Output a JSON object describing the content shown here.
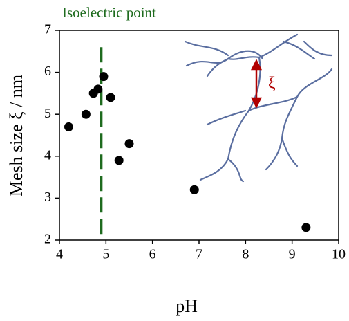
{
  "chart_data": {
    "type": "scatter",
    "x_label": "pH",
    "y_label": "Mesh size ξ / nm",
    "x": [
      4.2,
      4.57,
      4.73,
      4.83,
      4.95,
      5.1,
      5.28,
      5.5,
      6.9,
      9.3
    ],
    "values": [
      4.7,
      5.0,
      5.5,
      5.6,
      5.9,
      5.4,
      3.9,
      4.3,
      3.2,
      2.3
    ],
    "color": "#000000",
    "xlim": [
      4,
      10
    ],
    "xticks": [
      4,
      5,
      6,
      7,
      8,
      9,
      10
    ],
    "ylim": [
      2,
      7
    ],
    "yticks": [
      2,
      3,
      4,
      5,
      6,
      7
    ],
    "reference_line": {
      "x": 4.9,
      "top": 6.6,
      "label": "Isoelectric point",
      "color": "#1e6b1e"
    },
    "inset_label": "ξ"
  }
}
